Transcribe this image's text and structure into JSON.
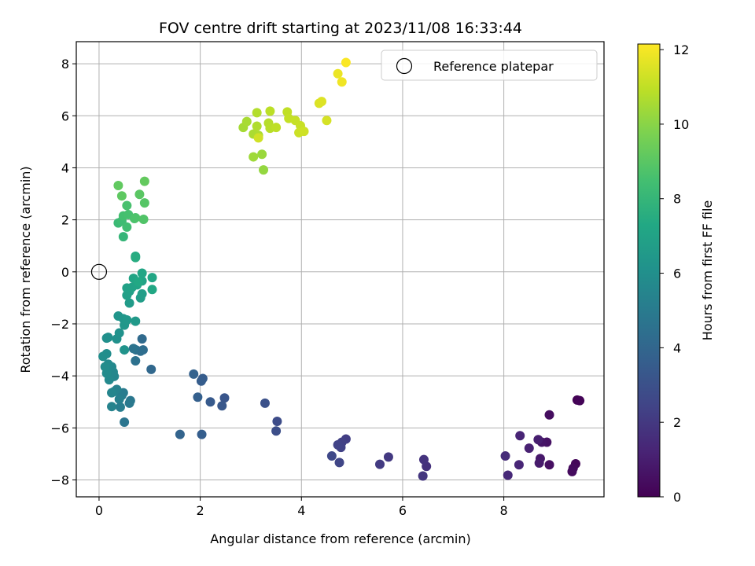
{
  "chart_data": {
    "type": "scatter",
    "title": "FOV centre drift starting at 2023/11/08 16:33:44",
    "xlabel": "Angular distance from reference (arcmin)",
    "ylabel": "Rotation from reference (arcmin)",
    "xlim": [
      -0.45,
      9.98
    ],
    "ylim": [
      -8.65,
      8.85
    ],
    "xticks": [
      0,
      2,
      4,
      6,
      8
    ],
    "yticks": [
      -8,
      -6,
      -4,
      -2,
      0,
      2,
      4,
      6,
      8
    ],
    "grid": true,
    "legend": {
      "placement": "top-right",
      "label": "Reference platepar"
    },
    "reference_point": {
      "x": 0,
      "y": 0
    },
    "colorbar": {
      "label": "Hours from first FF file",
      "min": 0,
      "max": 12.15,
      "ticks": [
        0,
        2,
        4,
        6,
        8,
        10,
        12
      ],
      "colormap": "viridis"
    },
    "points": [
      {
        "x": 9.45,
        "y": -4.93,
        "t": 0.05
      },
      {
        "x": 9.5,
        "y": -4.95,
        "t": 0.1
      },
      {
        "x": 9.42,
        "y": -7.38,
        "t": 0.2
      },
      {
        "x": 9.37,
        "y": -7.55,
        "t": 0.3
      },
      {
        "x": 9.35,
        "y": -7.68,
        "t": 0.35
      },
      {
        "x": 8.9,
        "y": -5.5,
        "t": 0.4
      },
      {
        "x": 8.9,
        "y": -7.42,
        "t": 0.5
      },
      {
        "x": 8.85,
        "y": -6.55,
        "t": 0.6
      },
      {
        "x": 8.75,
        "y": -6.55,
        "t": 0.7
      },
      {
        "x": 8.72,
        "y": -7.18,
        "t": 0.8
      },
      {
        "x": 8.7,
        "y": -7.35,
        "t": 0.9
      },
      {
        "x": 8.68,
        "y": -6.45,
        "t": 1.0
      },
      {
        "x": 8.5,
        "y": -6.78,
        "t": 1.1
      },
      {
        "x": 8.32,
        "y": -6.3,
        "t": 1.2
      },
      {
        "x": 8.3,
        "y": -7.42,
        "t": 1.3
      },
      {
        "x": 8.08,
        "y": -7.82,
        "t": 1.4
      },
      {
        "x": 8.03,
        "y": -7.08,
        "t": 1.5
      },
      {
        "x": 6.47,
        "y": -7.48,
        "t": 1.7
      },
      {
        "x": 6.42,
        "y": -7.22,
        "t": 1.8
      },
      {
        "x": 6.4,
        "y": -7.85,
        "t": 1.9
      },
      {
        "x": 5.72,
        "y": -7.12,
        "t": 2.0
      },
      {
        "x": 5.55,
        "y": -7.4,
        "t": 2.1
      },
      {
        "x": 4.88,
        "y": -6.43,
        "t": 2.2
      },
      {
        "x": 4.8,
        "y": -6.55,
        "t": 2.3
      },
      {
        "x": 4.78,
        "y": -6.75,
        "t": 2.35
      },
      {
        "x": 4.72,
        "y": -6.65,
        "t": 2.4
      },
      {
        "x": 4.75,
        "y": -7.33,
        "t": 2.5
      },
      {
        "x": 4.6,
        "y": -7.08,
        "t": 2.6
      },
      {
        "x": 3.52,
        "y": -5.75,
        "t": 2.8
      },
      {
        "x": 3.5,
        "y": -6.12,
        "t": 2.9
      },
      {
        "x": 3.28,
        "y": -5.05,
        "t": 3.0
      },
      {
        "x": 2.48,
        "y": -4.85,
        "t": 3.2
      },
      {
        "x": 2.43,
        "y": -5.15,
        "t": 3.3
      },
      {
        "x": 2.2,
        "y": -5.0,
        "t": 3.4
      },
      {
        "x": 2.05,
        "y": -4.1,
        "t": 3.5
      },
      {
        "x": 2.02,
        "y": -4.2,
        "t": 3.55
      },
      {
        "x": 2.03,
        "y": -6.25,
        "t": 3.6
      },
      {
        "x": 1.95,
        "y": -4.82,
        "t": 3.7
      },
      {
        "x": 1.87,
        "y": -3.93,
        "t": 3.8
      },
      {
        "x": 1.6,
        "y": -6.25,
        "t": 3.9
      },
      {
        "x": 1.03,
        "y": -3.75,
        "t": 4.1
      },
      {
        "x": 0.85,
        "y": -2.58,
        "t": 4.2
      },
      {
        "x": 0.87,
        "y": -3.0,
        "t": 4.3
      },
      {
        "x": 0.82,
        "y": -3.05,
        "t": 4.35
      },
      {
        "x": 0.73,
        "y": -3.0,
        "t": 4.4
      },
      {
        "x": 0.72,
        "y": -3.42,
        "t": 4.5
      },
      {
        "x": 0.68,
        "y": -2.95,
        "t": 4.6
      },
      {
        "x": 0.5,
        "y": -5.78,
        "t": 4.7
      },
      {
        "x": 0.62,
        "y": -4.95,
        "t": 4.8
      },
      {
        "x": 0.6,
        "y": -5.05,
        "t": 4.9
      },
      {
        "x": 0.48,
        "y": -4.65,
        "t": 5.0
      },
      {
        "x": 0.45,
        "y": -4.75,
        "t": 5.05
      },
      {
        "x": 0.42,
        "y": -5.2,
        "t": 5.1
      },
      {
        "x": 0.4,
        "y": -4.9,
        "t": 5.2
      },
      {
        "x": 0.35,
        "y": -4.52,
        "t": 5.3
      },
      {
        "x": 0.3,
        "y": -4.6,
        "t": 5.35
      },
      {
        "x": 0.25,
        "y": -5.18,
        "t": 5.4
      },
      {
        "x": 0.25,
        "y": -4.65,
        "t": 5.5
      },
      {
        "x": 0.3,
        "y": -4.02,
        "t": 5.55
      },
      {
        "x": 0.28,
        "y": -3.85,
        "t": 5.6
      },
      {
        "x": 0.25,
        "y": -3.65,
        "t": 5.65
      },
      {
        "x": 0.2,
        "y": -4.15,
        "t": 5.7
      },
      {
        "x": 0.18,
        "y": -3.55,
        "t": 5.75
      },
      {
        "x": 0.15,
        "y": -3.9,
        "t": 5.8
      },
      {
        "x": 0.12,
        "y": -3.65,
        "t": 5.85
      },
      {
        "x": 0.15,
        "y": -3.15,
        "t": 5.9
      },
      {
        "x": 0.08,
        "y": -3.25,
        "t": 5.95
      },
      {
        "x": 0.15,
        "y": -2.55,
        "t": 6.0
      },
      {
        "x": 0.18,
        "y": -2.52,
        "t": 6.05
      },
      {
        "x": 0.35,
        "y": -2.58,
        "t": 6.1
      },
      {
        "x": 0.4,
        "y": -2.35,
        "t": 6.15
      },
      {
        "x": 0.5,
        "y": -3.0,
        "t": 6.2
      },
      {
        "x": 0.38,
        "y": -1.7,
        "t": 6.3
      },
      {
        "x": 0.48,
        "y": -1.8,
        "t": 6.35
      },
      {
        "x": 0.5,
        "y": -2.05,
        "t": 6.4
      },
      {
        "x": 0.55,
        "y": -1.85,
        "t": 6.45
      },
      {
        "x": 0.72,
        "y": -1.9,
        "t": 6.5
      },
      {
        "x": 0.6,
        "y": -1.2,
        "t": 6.6
      },
      {
        "x": 0.82,
        "y": -1.0,
        "t": 6.7
      },
      {
        "x": 0.85,
        "y": -0.85,
        "t": 6.75
      },
      {
        "x": 0.55,
        "y": -0.9,
        "t": 6.8
      },
      {
        "x": 0.6,
        "y": -0.75,
        "t": 6.85
      },
      {
        "x": 0.55,
        "y": -0.62,
        "t": 6.9
      },
      {
        "x": 0.65,
        "y": -0.6,
        "t": 6.95
      },
      {
        "x": 0.75,
        "y": -0.5,
        "t": 7.0
      },
      {
        "x": 0.85,
        "y": -0.35,
        "t": 7.05
      },
      {
        "x": 0.68,
        "y": -0.25,
        "t": 7.1
      },
      {
        "x": 0.85,
        "y": -0.05,
        "t": 7.15
      },
      {
        "x": 1.05,
        "y": -0.22,
        "t": 7.2
      },
      {
        "x": 1.05,
        "y": -0.68,
        "t": 7.25
      },
      {
        "x": 0.78,
        "y": -0.38,
        "t": 7.3
      },
      {
        "x": 0.72,
        "y": 0.6,
        "t": 7.4
      },
      {
        "x": 0.72,
        "y": 0.55,
        "t": 7.5
      },
      {
        "x": 0.48,
        "y": 1.35,
        "t": 8.0
      },
      {
        "x": 0.38,
        "y": 1.88,
        "t": 8.2
      },
      {
        "x": 0.45,
        "y": 1.95,
        "t": 8.3
      },
      {
        "x": 0.55,
        "y": 1.72,
        "t": 8.4
      },
      {
        "x": 0.48,
        "y": 2.15,
        "t": 8.5
      },
      {
        "x": 0.58,
        "y": 2.2,
        "t": 8.55
      },
      {
        "x": 0.55,
        "y": 2.55,
        "t": 8.6
      },
      {
        "x": 0.7,
        "y": 2.05,
        "t": 8.65
      },
      {
        "x": 0.72,
        "y": 2.08,
        "t": 8.7
      },
      {
        "x": 0.88,
        "y": 2.02,
        "t": 8.8
      },
      {
        "x": 0.9,
        "y": 2.65,
        "t": 8.9
      },
      {
        "x": 0.8,
        "y": 2.98,
        "t": 9.0
      },
      {
        "x": 0.45,
        "y": 2.92,
        "t": 9.1
      },
      {
        "x": 0.38,
        "y": 3.32,
        "t": 9.15
      },
      {
        "x": 0.9,
        "y": 3.48,
        "t": 9.2
      },
      {
        "x": 3.25,
        "y": 3.92,
        "t": 10.2
      },
      {
        "x": 3.22,
        "y": 4.52,
        "t": 10.3
      },
      {
        "x": 3.05,
        "y": 4.42,
        "t": 10.4
      },
      {
        "x": 2.85,
        "y": 5.55,
        "t": 10.5
      },
      {
        "x": 2.92,
        "y": 5.78,
        "t": 10.55
      },
      {
        "x": 3.05,
        "y": 5.3,
        "t": 10.6
      },
      {
        "x": 3.15,
        "y": 5.25,
        "t": 10.65
      },
      {
        "x": 3.12,
        "y": 5.6,
        "t": 10.7
      },
      {
        "x": 3.12,
        "y": 6.12,
        "t": 10.75
      },
      {
        "x": 3.35,
        "y": 5.72,
        "t": 10.8
      },
      {
        "x": 3.38,
        "y": 5.52,
        "t": 10.85
      },
      {
        "x": 3.38,
        "y": 6.18,
        "t": 10.9
      },
      {
        "x": 3.5,
        "y": 5.55,
        "t": 10.95
      },
      {
        "x": 3.72,
        "y": 6.15,
        "t": 11.0
      },
      {
        "x": 3.75,
        "y": 5.9,
        "t": 11.05
      },
      {
        "x": 3.88,
        "y": 5.82,
        "t": 11.1
      },
      {
        "x": 3.98,
        "y": 5.62,
        "t": 11.15
      },
      {
        "x": 3.95,
        "y": 5.35,
        "t": 11.2
      },
      {
        "x": 4.05,
        "y": 5.4,
        "t": 11.25
      },
      {
        "x": 3.15,
        "y": 5.15,
        "t": 11.3
      },
      {
        "x": 4.5,
        "y": 5.82,
        "t": 11.4
      },
      {
        "x": 4.35,
        "y": 6.48,
        "t": 11.5
      },
      {
        "x": 4.4,
        "y": 6.55,
        "t": 11.55
      },
      {
        "x": 4.72,
        "y": 7.62,
        "t": 11.8
      },
      {
        "x": 4.8,
        "y": 7.3,
        "t": 11.9
      },
      {
        "x": 4.88,
        "y": 8.05,
        "t": 12.1
      }
    ]
  }
}
